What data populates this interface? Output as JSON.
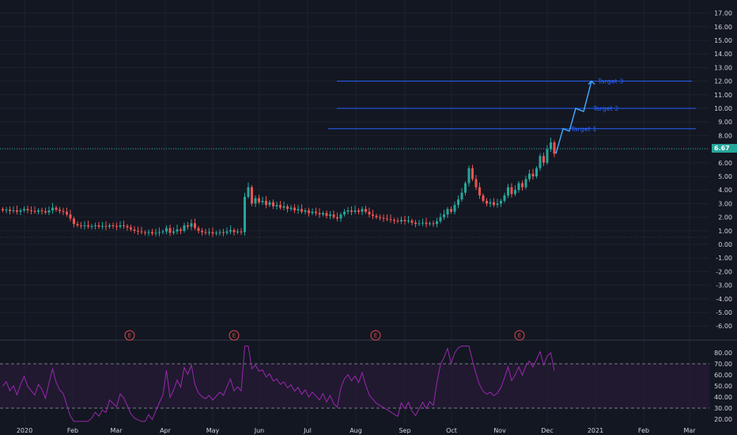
{
  "chart_data": [
    {
      "type": "candlestick",
      "ylim": [
        -6.5,
        17.0
      ],
      "y_ticks": [
        "17.00",
        "16.00",
        "15.00",
        "14.00",
        "13.00",
        "12.00",
        "11.00",
        "10.00",
        "9.00",
        "8.00",
        "7.00",
        "6.00",
        "5.00",
        "4.00",
        "3.00",
        "2.00",
        "1.00",
        "0.00",
        "-1.00",
        "-2.00",
        "-3.00",
        "-4.00",
        "-5.00",
        "-6.00"
      ],
      "last_price": "6.67",
      "grid": true,
      "candles": [
        [
          2.6,
          2.5
        ],
        [
          2.5,
          2.55
        ],
        [
          2.55,
          2.45
        ],
        [
          2.45,
          2.5
        ],
        [
          2.5,
          2.4
        ],
        [
          2.4,
          2.5
        ],
        [
          2.5,
          2.6
        ],
        [
          2.6,
          2.5
        ],
        [
          2.5,
          2.45
        ],
        [
          2.45,
          2.4
        ],
        [
          2.4,
          2.5
        ],
        [
          2.5,
          2.45
        ],
        [
          2.45,
          2.35
        ],
        [
          2.35,
          2.5
        ],
        [
          2.5,
          2.7
        ],
        [
          2.7,
          2.55
        ],
        [
          2.55,
          2.45
        ],
        [
          2.45,
          2.4
        ],
        [
          2.4,
          2.2
        ],
        [
          2.2,
          1.9
        ],
        [
          1.9,
          1.5
        ],
        [
          1.5,
          1.4
        ],
        [
          1.4,
          1.35
        ],
        [
          1.35,
          1.4
        ],
        [
          1.4,
          1.3
        ],
        [
          1.3,
          1.35
        ],
        [
          1.35,
          1.4
        ],
        [
          1.4,
          1.3
        ],
        [
          1.3,
          1.35
        ],
        [
          1.35,
          1.3
        ],
        [
          1.3,
          1.4
        ],
        [
          1.4,
          1.35
        ],
        [
          1.35,
          1.3
        ],
        [
          1.3,
          1.4
        ],
        [
          1.4,
          1.35
        ],
        [
          1.35,
          1.25
        ],
        [
          1.25,
          1.1
        ],
        [
          1.1,
          1.0
        ],
        [
          1.0,
          0.95
        ],
        [
          0.95,
          0.9
        ],
        [
          0.9,
          0.85
        ],
        [
          0.85,
          0.9
        ],
        [
          0.9,
          0.8
        ],
        [
          0.8,
          0.85
        ],
        [
          0.85,
          0.9
        ],
        [
          0.9,
          0.95
        ],
        [
          0.95,
          1.2
        ],
        [
          1.2,
          0.85
        ],
        [
          0.85,
          0.95
        ],
        [
          0.95,
          1.1
        ],
        [
          1.1,
          1.0
        ],
        [
          1.0,
          1.4
        ],
        [
          1.4,
          1.3
        ],
        [
          1.3,
          1.55
        ],
        [
          1.55,
          1.2
        ],
        [
          1.2,
          1.0
        ],
        [
          1.0,
          0.9
        ],
        [
          0.9,
          0.85
        ],
        [
          0.85,
          0.9
        ],
        [
          0.9,
          0.8
        ],
        [
          0.8,
          0.85
        ],
        [
          0.85,
          0.9
        ],
        [
          0.9,
          0.85
        ],
        [
          0.85,
          0.95
        ],
        [
          0.95,
          1.05
        ],
        [
          1.05,
          0.9
        ],
        [
          0.9,
          0.95
        ],
        [
          0.95,
          0.9
        ],
        [
          0.9,
          3.5
        ],
        [
          3.5,
          4.2
        ],
        [
          4.2,
          3.0
        ],
        [
          3.0,
          3.4
        ],
        [
          3.4,
          3.1
        ],
        [
          3.1,
          3.2
        ],
        [
          3.2,
          2.9
        ],
        [
          2.9,
          3.1
        ],
        [
          3.1,
          2.8
        ],
        [
          2.8,
          2.9
        ],
        [
          2.9,
          2.7
        ],
        [
          2.7,
          2.8
        ],
        [
          2.8,
          2.6
        ],
        [
          2.6,
          2.7
        ],
        [
          2.7,
          2.5
        ],
        [
          2.5,
          2.6
        ],
        [
          2.6,
          2.4
        ],
        [
          2.4,
          2.5
        ],
        [
          2.5,
          2.3
        ],
        [
          2.3,
          2.4
        ],
        [
          2.4,
          2.3
        ],
        [
          2.3,
          2.2
        ],
        [
          2.2,
          2.3
        ],
        [
          2.3,
          2.1
        ],
        [
          2.1,
          2.2
        ],
        [
          2.2,
          2.0
        ],
        [
          2.0,
          1.9
        ],
        [
          1.9,
          2.2
        ],
        [
          2.2,
          2.4
        ],
        [
          2.4,
          2.5
        ],
        [
          2.5,
          2.4
        ],
        [
          2.4,
          2.5
        ],
        [
          2.5,
          2.4
        ],
        [
          2.4,
          2.6
        ],
        [
          2.6,
          2.4
        ],
        [
          2.4,
          2.2
        ],
        [
          2.2,
          2.1
        ],
        [
          2.1,
          2.0
        ],
        [
          2.0,
          1.95
        ],
        [
          1.95,
          1.9
        ],
        [
          1.9,
          1.85
        ],
        [
          1.85,
          1.8
        ],
        [
          1.8,
          1.75
        ],
        [
          1.75,
          1.7
        ],
        [
          1.7,
          1.8
        ],
        [
          1.8,
          1.7
        ],
        [
          1.7,
          1.75
        ],
        [
          1.75,
          1.6
        ],
        [
          1.6,
          1.5
        ],
        [
          1.5,
          1.55
        ],
        [
          1.55,
          1.6
        ],
        [
          1.6,
          1.5
        ],
        [
          1.5,
          1.55
        ],
        [
          1.55,
          1.5
        ],
        [
          1.5,
          1.7
        ],
        [
          1.7,
          2.0
        ],
        [
          2.0,
          2.2
        ],
        [
          2.2,
          2.6
        ],
        [
          2.6,
          2.4
        ],
        [
          2.4,
          2.9
        ],
        [
          2.9,
          3.3
        ],
        [
          3.3,
          3.8
        ],
        [
          3.8,
          4.5
        ],
        [
          4.5,
          5.6
        ],
        [
          5.6,
          4.8
        ],
        [
          4.8,
          4.2
        ],
        [
          4.2,
          3.6
        ],
        [
          3.6,
          3.2
        ],
        [
          3.2,
          3.0
        ],
        [
          3.0,
          3.1
        ],
        [
          3.1,
          2.9
        ],
        [
          2.9,
          3.0
        ],
        [
          3.0,
          3.2
        ],
        [
          3.2,
          3.6
        ],
        [
          3.6,
          4.2
        ],
        [
          4.2,
          3.7
        ],
        [
          3.7,
          4.0
        ],
        [
          4.0,
          4.5
        ],
        [
          4.5,
          4.2
        ],
        [
          4.2,
          4.8
        ],
        [
          4.8,
          5.2
        ],
        [
          5.2,
          5.0
        ],
        [
          5.0,
          5.6
        ],
        [
          5.6,
          6.5
        ],
        [
          6.5,
          6.0
        ],
        [
          6.0,
          7.0
        ],
        [
          7.0,
          7.5
        ],
        [
          7.5,
          6.67
        ]
      ]
    },
    {
      "type": "line",
      "ylim": [
        15,
        90
      ],
      "y_ticks": [
        "80.00",
        "70.00",
        "60.00",
        "50.00",
        "40.00",
        "30.00",
        "20.00"
      ],
      "band": [
        30,
        70
      ]
    }
  ],
  "x_ticks": [
    "2020",
    "Feb",
    "Mar",
    "Apr",
    "May",
    "Jun",
    "Jul",
    "Aug",
    "Sep",
    "Oct",
    "Nov",
    "Dec",
    "2021",
    "Feb",
    "Mar"
  ],
  "targets": [
    {
      "label": "Target 1",
      "value": 8.5
    },
    {
      "label": "Target 2",
      "value": 10.0
    },
    {
      "label": "Target 3",
      "value": 12.0
    }
  ],
  "earnings_marker": "E",
  "colors": {
    "up": "#26a69a",
    "down": "#ef5350",
    "accent": "#2962ff",
    "rsi": "#9c27b0"
  }
}
